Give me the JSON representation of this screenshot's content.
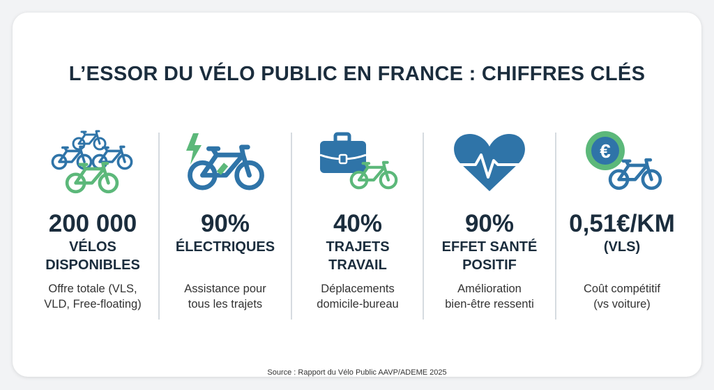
{
  "title": "L’ESSOR DU VÉLO PUBLIC EN FRANCE : CHIFFRES CLÉS",
  "colors": {
    "blue": "#2f74a8",
    "green": "#5cb87a",
    "text": "#1b2d3d"
  },
  "stats": [
    {
      "icon": "bike-group-icon",
      "value": "200 000",
      "label1": "VÉLOS",
      "label2": "DISPONIBLES",
      "desc1": "Offre totale (VLS,",
      "desc2": "VLD, Free-floating)"
    },
    {
      "icon": "electric-bike-icon",
      "value": "90%",
      "label1": "ÉLECTRIQUES",
      "label2": "",
      "desc1": "Assistance pour",
      "desc2": "tous les trajets"
    },
    {
      "icon": "briefcase-bike-icon",
      "value": "40%",
      "label1": "TRAJETS",
      "label2": "TRAVAIL",
      "desc1": "Déplacements",
      "desc2": "domicile-bureau"
    },
    {
      "icon": "heart-pulse-icon",
      "value": "90%",
      "label1": "EFFET SANTÉ",
      "label2": "POSITIF",
      "desc1": "Amélioration",
      "desc2": "bien-être ressenti"
    },
    {
      "icon": "euro-bike-icon",
      "value": "0,51€/KM",
      "label1": "(VLS)",
      "label2": "",
      "desc1": "Coût compétitif",
      "desc2": "(vs voiture)"
    }
  ],
  "source": "Source : Rapport du Vélo Public AAVP/ADEME 2025"
}
